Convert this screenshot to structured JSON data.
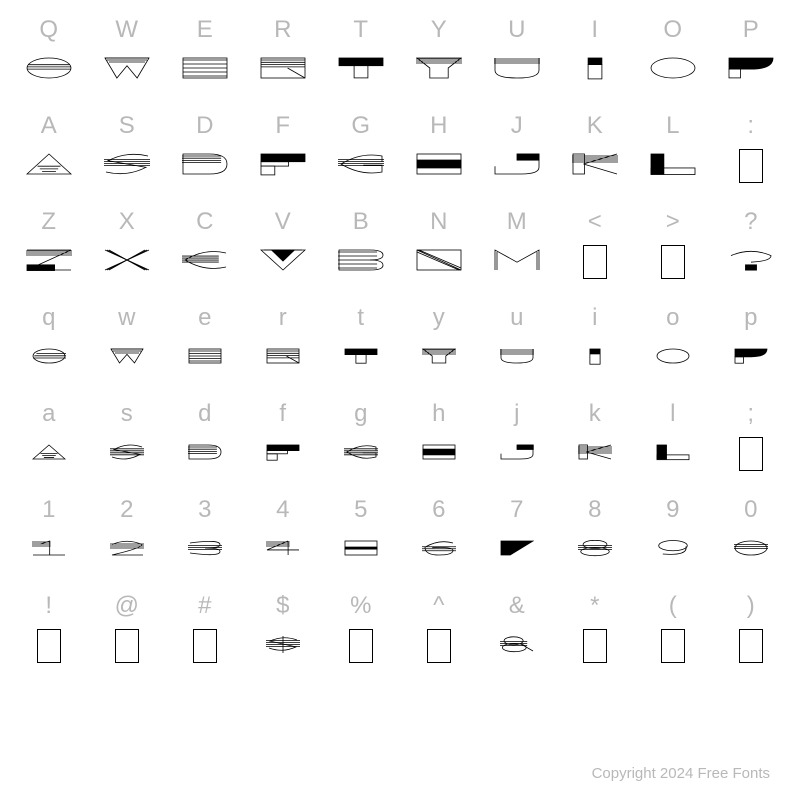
{
  "background_color": "#ffffff",
  "label_color": "#b8b8b8",
  "glyph_stroke": "#000000",
  "glyph_fill_solid": "#000000",
  "glyph_fill_empty": "#ffffff",
  "label_fontsize": 24,
  "footer_fontsize": 15,
  "footer_color": "#b8b8b8",
  "footer_text": "Copyright 2024 Free Fonts",
  "rows": [
    {
      "labels": [
        "Q",
        "W",
        "E",
        "R",
        "T",
        "Y",
        "U",
        "I",
        "O",
        "P"
      ],
      "glyphs": [
        "Q",
        "W",
        "E",
        "R",
        "T",
        "Y",
        "U",
        "I",
        "O",
        "P"
      ],
      "upper": true
    },
    {
      "labels": [
        "A",
        "S",
        "D",
        "F",
        "G",
        "H",
        "J",
        "K",
        "L",
        ":"
      ],
      "glyphs": [
        "A",
        "S",
        "D",
        "F",
        "G",
        "H",
        "J",
        "K",
        "L",
        ":"
      ],
      "upper": true
    },
    {
      "labels": [
        "Z",
        "X",
        "C",
        "V",
        "B",
        "N",
        "M",
        "<",
        ">",
        "?"
      ],
      "glyphs": [
        "Z",
        "X",
        "C",
        "V",
        "B",
        "N",
        "M",
        "<",
        ">",
        "?"
      ],
      "upper": true
    },
    {
      "labels": [
        "q",
        "w",
        "e",
        "r",
        "t",
        "y",
        "u",
        "i",
        "o",
        "p"
      ],
      "glyphs": [
        "Q",
        "W",
        "E",
        "R",
        "T",
        "Y",
        "U",
        "I",
        "O",
        "P"
      ],
      "upper": false
    },
    {
      "labels": [
        "a",
        "s",
        "d",
        "f",
        "g",
        "h",
        "j",
        "k",
        "l",
        ";"
      ],
      "glyphs": [
        "A",
        "S",
        "D",
        "F",
        "G",
        "H",
        "J",
        "K",
        "L",
        ";"
      ],
      "upper": false
    },
    {
      "labels": [
        "1",
        "2",
        "3",
        "4",
        "5",
        "6",
        "7",
        "8",
        "9",
        "0"
      ],
      "glyphs": [
        "1",
        "2",
        "3",
        "4",
        "5",
        "6",
        "7",
        "8",
        "9",
        "0"
      ],
      "upper": false
    },
    {
      "labels": [
        "!",
        "@",
        "#",
        "$",
        "%",
        "^",
        "&",
        "*",
        "(",
        ")"
      ],
      "glyphs": [
        "!",
        "@",
        "#",
        "$",
        "%",
        "^",
        "&",
        "*",
        "(",
        ")"
      ],
      "upper": false
    }
  ]
}
